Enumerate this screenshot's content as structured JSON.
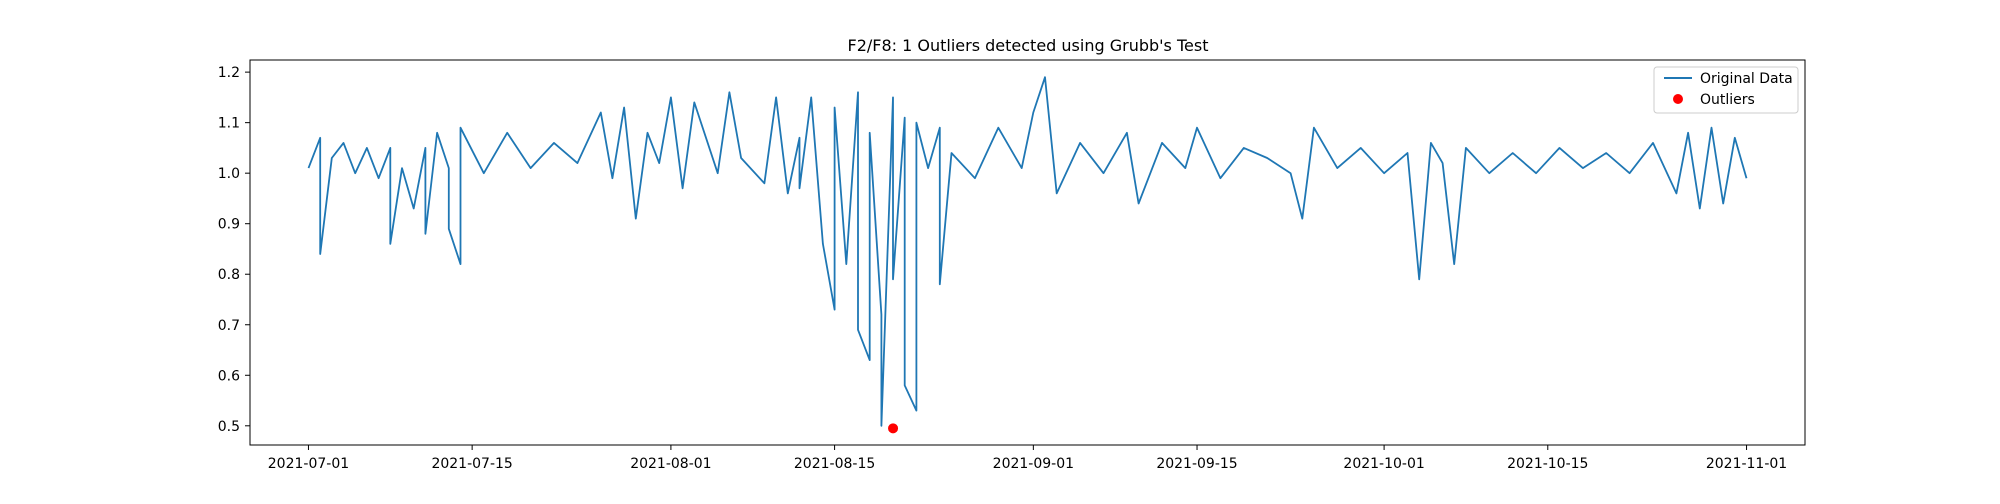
{
  "chart_data": {
    "type": "line",
    "title": "F2/F8: 1 Outliers detected using Grubb's Test",
    "xlabel": "",
    "ylabel": "",
    "x_range": [
      "2021-06-26",
      "2021-11-06"
    ],
    "ylim": [
      0.462,
      1.224
    ],
    "x_ticks": [
      "2021-07-01",
      "2021-07-15",
      "2021-08-01",
      "2021-08-15",
      "2021-09-01",
      "2021-09-15",
      "2021-10-01",
      "2021-10-15",
      "2021-11-01"
    ],
    "y_ticks": [
      "0.5",
      "0.6",
      "0.7",
      "0.8",
      "0.9",
      "1.0",
      "1.1",
      "1.2"
    ],
    "grid": false,
    "legend_position": "top-right",
    "series": [
      {
        "name": "Original Data",
        "kind": "line",
        "color": "#1f77b4",
        "points": [
          [
            "2021-07-01",
            1.01
          ],
          [
            "2021-07-02",
            1.07
          ],
          [
            "2021-07-02",
            0.84
          ],
          [
            "2021-07-03",
            1.03
          ],
          [
            "2021-07-04",
            1.06
          ],
          [
            "2021-07-05",
            1.0
          ],
          [
            "2021-07-06",
            1.05
          ],
          [
            "2021-07-07",
            0.99
          ],
          [
            "2021-07-08",
            1.05
          ],
          [
            "2021-07-08",
            0.86
          ],
          [
            "2021-07-09",
            1.01
          ],
          [
            "2021-07-10",
            0.93
          ],
          [
            "2021-07-11",
            1.05
          ],
          [
            "2021-07-11",
            0.88
          ],
          [
            "2021-07-12",
            1.08
          ],
          [
            "2021-07-13",
            1.01
          ],
          [
            "2021-07-13",
            0.89
          ],
          [
            "2021-07-14",
            0.82
          ],
          [
            "2021-07-14",
            1.09
          ],
          [
            "2021-07-16",
            1.0
          ],
          [
            "2021-07-18",
            1.08
          ],
          [
            "2021-07-20",
            1.01
          ],
          [
            "2021-07-22",
            1.06
          ],
          [
            "2021-07-24",
            1.02
          ],
          [
            "2021-07-26",
            1.12
          ],
          [
            "2021-07-27",
            0.99
          ],
          [
            "2021-07-28",
            1.13
          ],
          [
            "2021-07-29",
            0.91
          ],
          [
            "2021-07-30",
            1.08
          ],
          [
            "2021-07-31",
            1.02
          ],
          [
            "2021-08-01",
            1.15
          ],
          [
            "2021-08-02",
            0.97
          ],
          [
            "2021-08-03",
            1.14
          ],
          [
            "2021-08-05",
            1.0
          ],
          [
            "2021-08-06",
            1.16
          ],
          [
            "2021-08-07",
            1.03
          ],
          [
            "2021-08-09",
            0.98
          ],
          [
            "2021-08-10",
            1.15
          ],
          [
            "2021-08-11",
            0.96
          ],
          [
            "2021-08-12",
            1.07
          ],
          [
            "2021-08-12",
            0.97
          ],
          [
            "2021-08-13",
            1.15
          ],
          [
            "2021-08-14",
            0.86
          ],
          [
            "2021-08-15",
            0.73
          ],
          [
            "2021-08-15",
            1.13
          ],
          [
            "2021-08-16",
            0.82
          ],
          [
            "2021-08-17",
            1.16
          ],
          [
            "2021-08-17",
            0.69
          ],
          [
            "2021-08-18",
            0.63
          ],
          [
            "2021-08-18",
            1.08
          ],
          [
            "2021-08-19",
            0.72
          ],
          [
            "2021-08-19",
            0.5
          ],
          [
            "2021-08-20",
            1.15
          ],
          [
            "2021-08-20",
            0.79
          ],
          [
            "2021-08-21",
            1.11
          ],
          [
            "2021-08-21",
            0.58
          ],
          [
            "2021-08-22",
            0.53
          ],
          [
            "2021-08-22",
            1.1
          ],
          [
            "2021-08-23",
            1.01
          ],
          [
            "2021-08-24",
            1.09
          ],
          [
            "2021-08-24",
            0.78
          ],
          [
            "2021-08-25",
            1.04
          ],
          [
            "2021-08-27",
            0.99
          ],
          [
            "2021-08-29",
            1.09
          ],
          [
            "2021-08-31",
            1.01
          ],
          [
            "2021-09-01",
            1.12
          ],
          [
            "2021-09-02",
            1.19
          ],
          [
            "2021-09-03",
            0.96
          ],
          [
            "2021-09-05",
            1.06
          ],
          [
            "2021-09-07",
            1.0
          ],
          [
            "2021-09-09",
            1.08
          ],
          [
            "2021-09-10",
            0.94
          ],
          [
            "2021-09-12",
            1.06
          ],
          [
            "2021-09-14",
            1.01
          ],
          [
            "2021-09-15",
            1.09
          ],
          [
            "2021-09-17",
            0.99
          ],
          [
            "2021-09-19",
            1.05
          ],
          [
            "2021-09-21",
            1.03
          ],
          [
            "2021-09-23",
            1.0
          ],
          [
            "2021-09-24",
            0.91
          ],
          [
            "2021-09-25",
            1.09
          ],
          [
            "2021-09-27",
            1.01
          ],
          [
            "2021-09-29",
            1.05
          ],
          [
            "2021-10-01",
            1.0
          ],
          [
            "2021-10-03",
            1.04
          ],
          [
            "2021-10-04",
            0.79
          ],
          [
            "2021-10-05",
            1.06
          ],
          [
            "2021-10-06",
            1.02
          ],
          [
            "2021-10-07",
            0.82
          ],
          [
            "2021-10-08",
            1.05
          ],
          [
            "2021-10-10",
            1.0
          ],
          [
            "2021-10-12",
            1.04
          ],
          [
            "2021-10-14",
            1.0
          ],
          [
            "2021-10-16",
            1.05
          ],
          [
            "2021-10-18",
            1.01
          ],
          [
            "2021-10-20",
            1.04
          ],
          [
            "2021-10-22",
            1.0
          ],
          [
            "2021-10-24",
            1.06
          ],
          [
            "2021-10-26",
            0.96
          ],
          [
            "2021-10-27",
            1.08
          ],
          [
            "2021-10-28",
            0.93
          ],
          [
            "2021-10-29",
            1.09
          ],
          [
            "2021-10-30",
            0.94
          ],
          [
            "2021-10-31",
            1.07
          ],
          [
            "2021-11-01",
            0.99
          ]
        ]
      },
      {
        "name": "Outliers",
        "kind": "scatter",
        "color": "#ff0000",
        "points": [
          [
            "2021-08-20",
            0.495
          ]
        ]
      }
    ]
  }
}
